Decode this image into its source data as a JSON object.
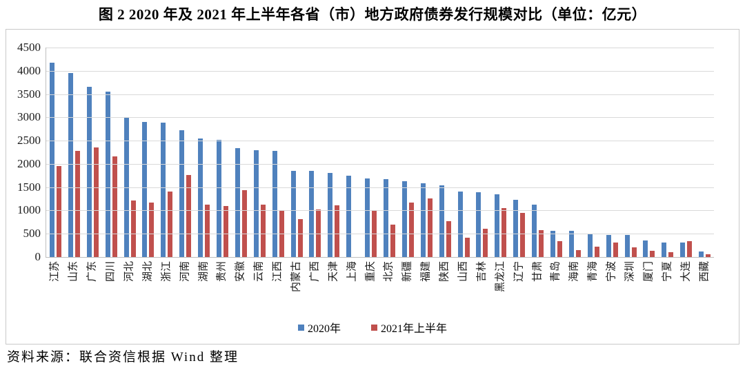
{
  "title": "图 2  2020 年及 2021 年上半年各省（市）地方政府债券发行规模对比（单位：亿元）",
  "source_note": "资料来源：联合资信根据 Wind 整理",
  "colors": {
    "series_2020": "#4f81bd",
    "series_2021h1": "#c0504d",
    "gridline": "#d9d9d9",
    "axis": "#bdbdbd"
  },
  "chart_data": {
    "type": "bar",
    "title": "2020 年及 2021 年上半年各省（市）地方政府债券发行规模对比",
    "unit": "亿元",
    "categories": [
      "江苏",
      "山东",
      "广东",
      "四川",
      "河北",
      "湖北",
      "浙江",
      "河南",
      "湖南",
      "贵州",
      "安徽",
      "云南",
      "江西",
      "内蒙古",
      "广西",
      "天津",
      "上海",
      "重庆",
      "北京",
      "新疆",
      "福建",
      "陕西",
      "山西",
      "吉林",
      "黑龙江",
      "辽宁",
      "甘肃",
      "青岛",
      "海南",
      "青海",
      "宁波",
      "深圳",
      "厦门",
      "宁夏",
      "大连",
      "西藏"
    ],
    "series": [
      {
        "name": "2020年",
        "color": "#4f81bd",
        "values": [
          4180,
          3950,
          3660,
          3560,
          3000,
          2900,
          2885,
          2725,
          2550,
          2520,
          2335,
          2295,
          2285,
          1850,
          1850,
          1805,
          1750,
          1690,
          1675,
          1625,
          1585,
          1535,
          1410,
          1385,
          1340,
          1235,
          1120,
          560,
          560,
          505,
          480,
          470,
          360,
          315,
          305,
          125
        ]
      },
      {
        "name": "2021年上半年",
        "color": "#c0504d",
        "values": [
          1950,
          2280,
          2350,
          2160,
          1220,
          1170,
          1400,
          1760,
          1130,
          1100,
          1435,
          1130,
          1005,
          815,
          1015,
          1110,
          0,
          1010,
          700,
          1165,
          1260,
          765,
          410,
          605,
          1050,
          940,
          580,
          335,
          155,
          225,
          315,
          200,
          140,
          105,
          340,
          60
        ]
      }
    ],
    "ylim": [
      0,
      4500
    ],
    "y_ticks": [
      4500,
      4000,
      3500,
      3000,
      2500,
      2000,
      1500,
      1000,
      500,
      0
    ],
    "grid": true,
    "legend_position": "bottom"
  }
}
